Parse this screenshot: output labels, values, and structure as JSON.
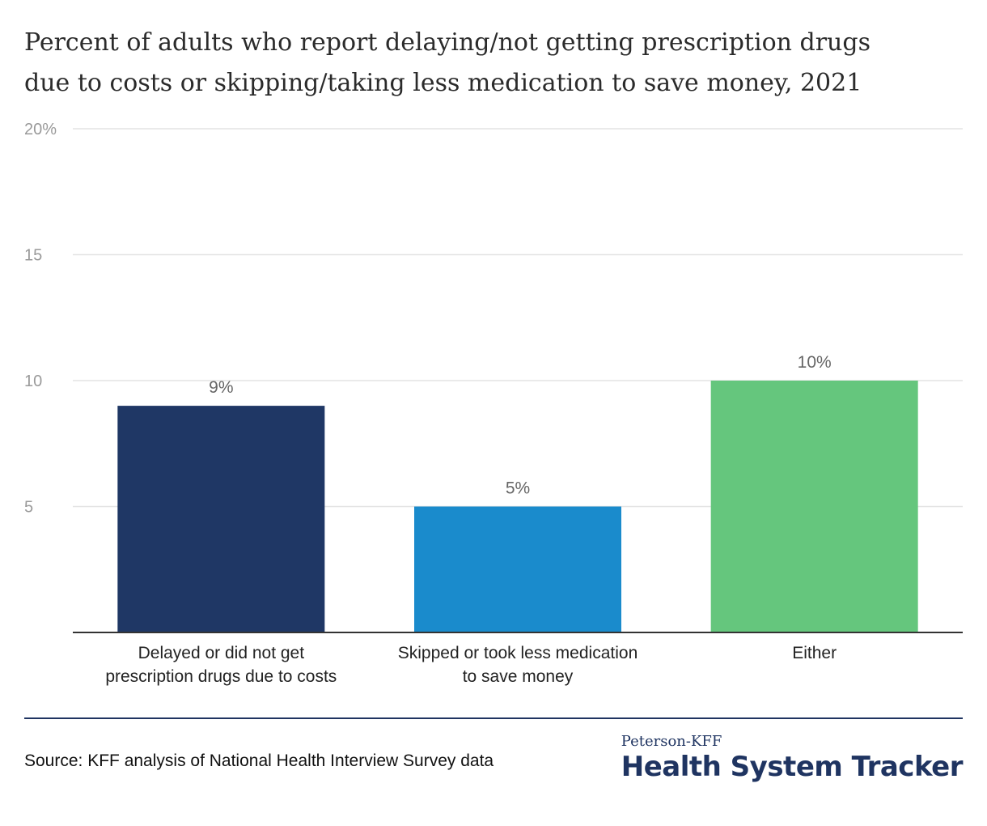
{
  "title_lines": [
    "Percent of adults who report delaying/not getting prescription drugs",
    "due to costs or skipping/taking less medication to save money, 2021"
  ],
  "chart_data": {
    "type": "bar",
    "categories": [
      [
        "Delayed or did not get",
        "prescription drugs due to costs"
      ],
      [
        "Skipped or took less medication",
        "to save money"
      ],
      [
        "Either"
      ]
    ],
    "values": [
      9,
      5,
      10
    ],
    "data_labels": [
      "9%",
      "5%",
      "10%"
    ],
    "colors": [
      "#1f3765",
      "#1a8bcc",
      "#65c67d"
    ],
    "ylim": [
      0,
      20
    ],
    "yticks": [
      5,
      10,
      15,
      20
    ],
    "ytick_labels": [
      "5",
      "10",
      "15",
      "20%"
    ],
    "grid": true,
    "xlabel": "",
    "ylabel": ""
  },
  "footer": {
    "source": "Source: KFF analysis of National Health Interview Survey data",
    "brand_kicker": "Peterson-KFF",
    "brand_name": "Health System Tracker"
  },
  "colors": {
    "grid": "#e3e3e3",
    "baseline": "#333333",
    "brand": "#1f3461"
  }
}
